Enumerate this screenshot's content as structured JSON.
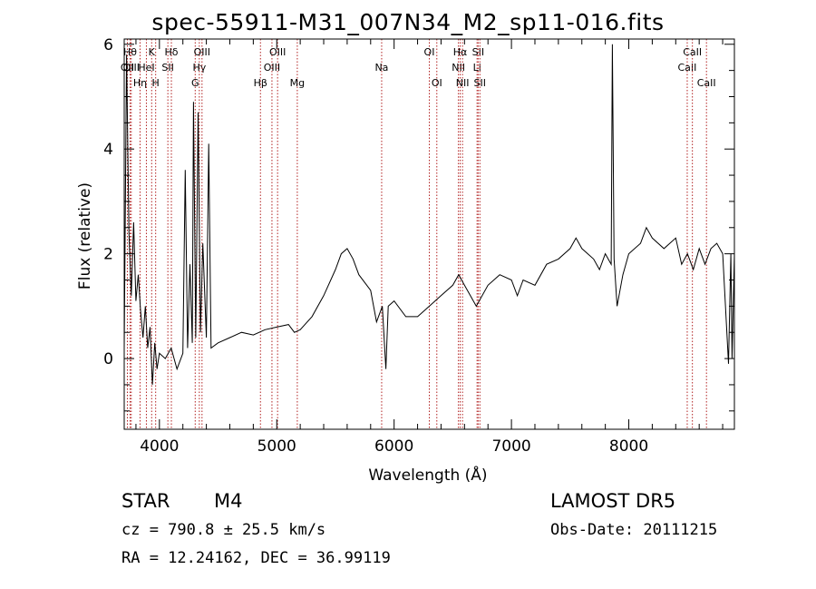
{
  "header": {
    "title": "spec-55911-M31_007N34_M2_sp11-016.fits"
  },
  "info": {
    "object_class": "STAR",
    "subclass": "M4",
    "survey": "LAMOST DR5",
    "cz": "cz = 790.8 ± 25.5 km/s",
    "obs_date": "Obs-Date: 20111215",
    "ra_dec": "RA =  12.24162, DEC =  36.99119"
  },
  "chart_data": {
    "type": "line",
    "title": "spec-55911-M31_007N34_M2_sp11-016.fits",
    "xlabel": "Wavelength (Å)",
    "ylabel": "Flux (relative)",
    "xlim": [
      3700,
      8900
    ],
    "ylim": [
      -1.35,
      6.1
    ],
    "x_ticks": [
      4000,
      5000,
      6000,
      7000,
      8000
    ],
    "y_ticks": [
      0,
      2,
      4,
      6
    ],
    "grid": false,
    "line_color": "#000000",
    "marker_color": "#b22222",
    "series": [
      {
        "values": [
          [
            3700,
            0.2
          ],
          [
            3720,
            5.8
          ],
          [
            3740,
            2.4
          ],
          [
            3760,
            1.2
          ],
          [
            3780,
            2.6
          ],
          [
            3800,
            1.1
          ],
          [
            3820,
            1.6
          ],
          [
            3840,
            0.9
          ],
          [
            3860,
            0.4
          ],
          [
            3880,
            1.0
          ],
          [
            3900,
            0.2
          ],
          [
            3920,
            0.6
          ],
          [
            3940,
            -0.5
          ],
          [
            3960,
            0.3
          ],
          [
            3980,
            -0.2
          ],
          [
            4000,
            0.1
          ],
          [
            4050,
            0.0
          ],
          [
            4100,
            0.2
          ],
          [
            4150,
            -0.2
          ],
          [
            4200,
            0.1
          ],
          [
            4220,
            3.6
          ],
          [
            4240,
            0.2
          ],
          [
            4260,
            1.8
          ],
          [
            4280,
            0.3
          ],
          [
            4290,
            4.9
          ],
          [
            4310,
            0.4
          ],
          [
            4330,
            4.7
          ],
          [
            4350,
            0.5
          ],
          [
            4370,
            2.2
          ],
          [
            4400,
            0.4
          ],
          [
            4420,
            4.1
          ],
          [
            4440,
            0.2
          ],
          [
            4500,
            0.3
          ],
          [
            4600,
            0.4
          ],
          [
            4700,
            0.5
          ],
          [
            4800,
            0.45
          ],
          [
            4900,
            0.55
          ],
          [
            5000,
            0.6
          ],
          [
            5100,
            0.65
          ],
          [
            5150,
            0.5
          ],
          [
            5200,
            0.55
          ],
          [
            5300,
            0.8
          ],
          [
            5400,
            1.2
          ],
          [
            5500,
            1.7
          ],
          [
            5550,
            2.0
          ],
          [
            5600,
            2.1
          ],
          [
            5650,
            1.9
          ],
          [
            5700,
            1.6
          ],
          [
            5800,
            1.3
          ],
          [
            5850,
            0.7
          ],
          [
            5900,
            1.0
          ],
          [
            5930,
            -0.2
          ],
          [
            5950,
            1.0
          ],
          [
            6000,
            1.1
          ],
          [
            6100,
            0.8
          ],
          [
            6200,
            0.8
          ],
          [
            6300,
            1.0
          ],
          [
            6400,
            1.2
          ],
          [
            6500,
            1.4
          ],
          [
            6550,
            1.6
          ],
          [
            6600,
            1.4
          ],
          [
            6650,
            1.2
          ],
          [
            6700,
            1.0
          ],
          [
            6800,
            1.4
          ],
          [
            6900,
            1.6
          ],
          [
            7000,
            1.5
          ],
          [
            7050,
            1.2
          ],
          [
            7100,
            1.5
          ],
          [
            7200,
            1.4
          ],
          [
            7300,
            1.8
          ],
          [
            7400,
            1.9
          ],
          [
            7500,
            2.1
          ],
          [
            7550,
            2.3
          ],
          [
            7600,
            2.1
          ],
          [
            7700,
            1.9
          ],
          [
            7750,
            1.7
          ],
          [
            7800,
            2.0
          ],
          [
            7850,
            1.8
          ],
          [
            7860,
            6.0
          ],
          [
            7875,
            1.9
          ],
          [
            7900,
            1.0
          ],
          [
            7950,
            1.6
          ],
          [
            8000,
            2.0
          ],
          [
            8100,
            2.2
          ],
          [
            8150,
            2.5
          ],
          [
            8200,
            2.3
          ],
          [
            8300,
            2.1
          ],
          [
            8400,
            2.3
          ],
          [
            8450,
            1.8
          ],
          [
            8500,
            2.0
          ],
          [
            8550,
            1.7
          ],
          [
            8600,
            2.1
          ],
          [
            8650,
            1.8
          ],
          [
            8700,
            2.1
          ],
          [
            8750,
            2.2
          ],
          [
            8800,
            2.0
          ],
          [
            8850,
            -0.1
          ],
          [
            8870,
            2.0
          ],
          [
            8880,
            0.0
          ],
          [
            8900,
            2.0
          ]
        ]
      }
    ],
    "line_markers": [
      {
        "label": "OII",
        "wavelength": 3727,
        "row": 2
      },
      {
        "label": "Hθ",
        "wavelength": 3750,
        "row": 1
      },
      {
        "label": "OIII",
        "wavelength": 3760,
        "row": 2
      },
      {
        "label": "Hη",
        "wavelength": 3835,
        "row": 3
      },
      {
        "label": "HeI",
        "wavelength": 3889,
        "row": 2
      },
      {
        "label": "K",
        "wavelength": 3934,
        "row": 1
      },
      {
        "label": "H",
        "wavelength": 3968,
        "row": 3
      },
      {
        "label": "SII",
        "wavelength": 4072,
        "row": 2
      },
      {
        "label": "Hδ",
        "wavelength": 4102,
        "row": 1
      },
      {
        "label": "G",
        "wavelength": 4305,
        "row": 3
      },
      {
        "label": "Hγ",
        "wavelength": 4340,
        "row": 2
      },
      {
        "label": "OIII",
        "wavelength": 4363,
        "row": 1
      },
      {
        "label": "Hβ",
        "wavelength": 4861,
        "row": 3
      },
      {
        "label": "OIII",
        "wavelength": 4959,
        "row": 2
      },
      {
        "label": "OIII",
        "wavelength": 5007,
        "row": 1
      },
      {
        "label": "Mg",
        "wavelength": 5175,
        "row": 3
      },
      {
        "label": "Na",
        "wavelength": 5894,
        "row": 2
      },
      {
        "label": "OI",
        "wavelength": 6300,
        "row": 1
      },
      {
        "label": "OI",
        "wavelength": 6364,
        "row": 3
      },
      {
        "label": "NII",
        "wavelength": 6548,
        "row": 2
      },
      {
        "label": "Hα",
        "wavelength": 6563,
        "row": 1
      },
      {
        "label": "NII",
        "wavelength": 6583,
        "row": 3
      },
      {
        "label": "Li",
        "wavelength": 6707,
        "row": 2
      },
      {
        "label": "SII",
        "wavelength": 6716,
        "row": 1
      },
      {
        "label": "SII",
        "wavelength": 6731,
        "row": 3
      },
      {
        "label": "CaII",
        "wavelength": 8498,
        "row": 2
      },
      {
        "label": "CaII",
        "wavelength": 8542,
        "row": 1
      },
      {
        "label": "CaII",
        "wavelength": 8662,
        "row": 3
      }
    ]
  }
}
